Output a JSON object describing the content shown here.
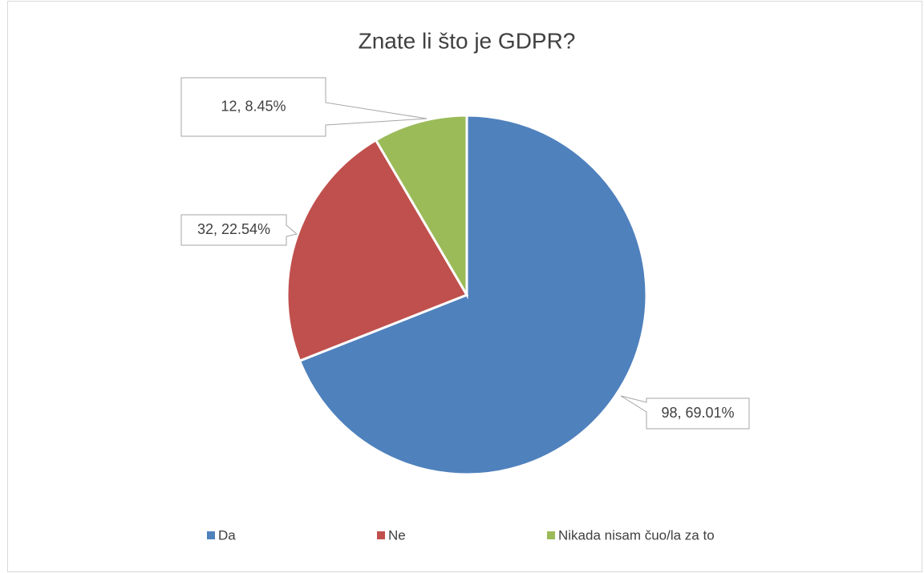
{
  "chart_data": {
    "type": "pie",
    "title": "Znate li što je GDPR?",
    "categories": [
      "Da",
      "Ne",
      "Nikada nisam čuo/la za to"
    ],
    "values": [
      98,
      32,
      12
    ],
    "value_labels": [
      "98, 69.01%",
      "32, 22.54%",
      "12, 8.45%"
    ],
    "colors": [
      "#4f81bd",
      "#c0504d",
      "#9bbb59"
    ],
    "legend": "bottom"
  }
}
